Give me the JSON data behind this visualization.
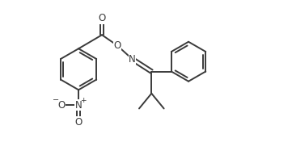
{
  "bg_color": "#ffffff",
  "line_color": "#3a3a3a",
  "line_width": 1.4,
  "figure_size": [
    3.61,
    1.92
  ],
  "dpi": 100,
  "xlim": [
    0,
    10.5
  ],
  "ylim": [
    0,
    5.6
  ]
}
